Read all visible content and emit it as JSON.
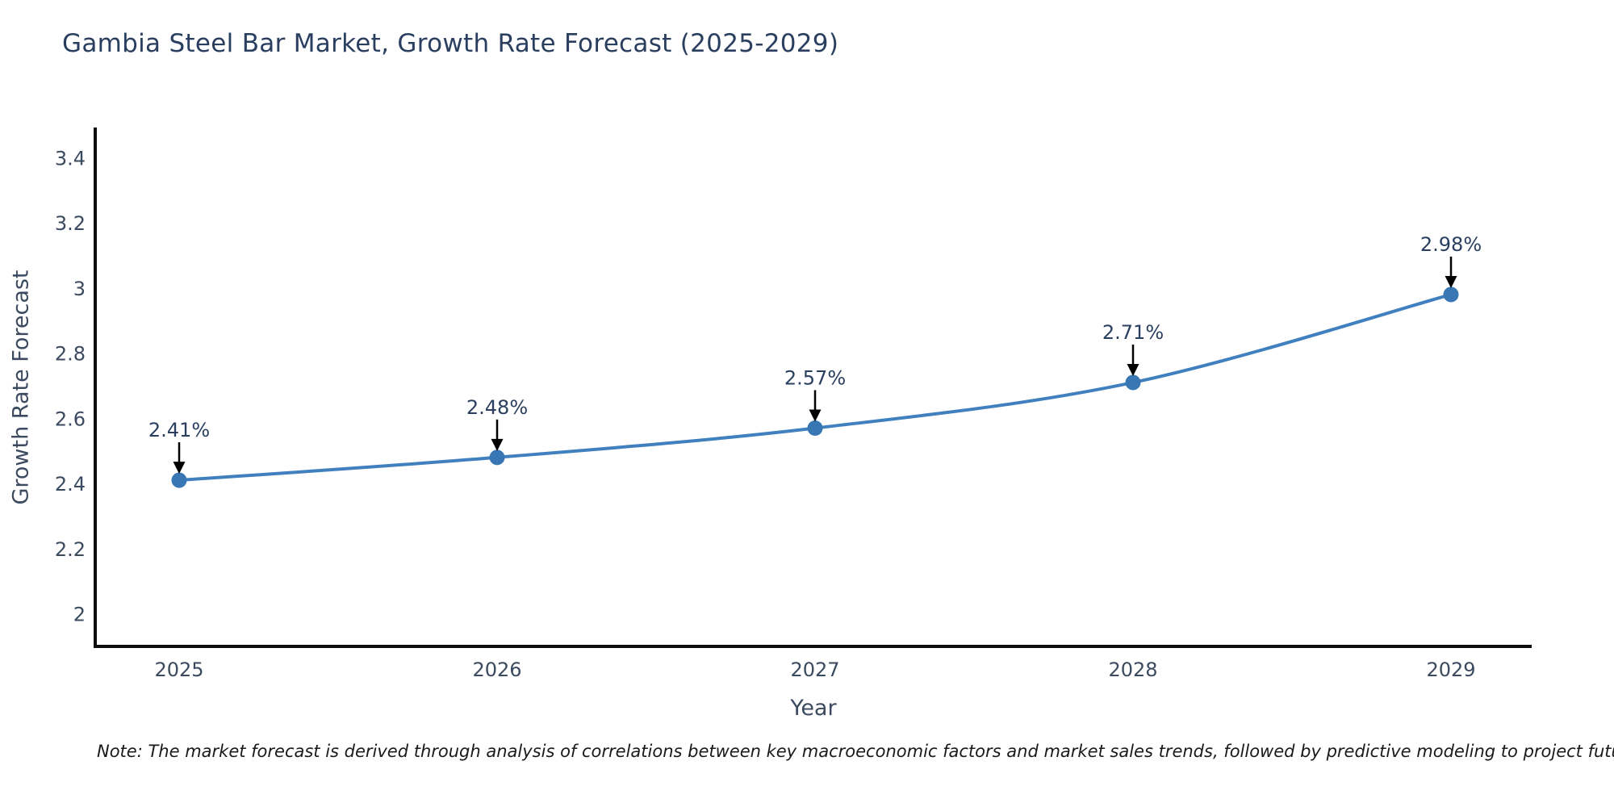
{
  "title": "Gambia Steel Bar Market, Growth Rate Forecast (2025-2029)",
  "note": "Note: The market forecast is derived through analysis of correlations between key macroeconomic factors and market sales trends, followed by predictive modeling to project future sales",
  "colors": {
    "background": "#ffffff",
    "title_text": "#2a3f5f",
    "tick_text": "#3b4a5f",
    "annotation_text": "#2a3f5f",
    "axis_line": "#0d0d0d",
    "series_line": "#4080bf",
    "marker_fill": "#3876b4",
    "arrow": "#000000",
    "note_text": "#1a1a1a"
  },
  "chart_data": {
    "type": "line",
    "title": "Gambia Steel Bar Market, Growth Rate Forecast (2025-2029)",
    "xlabel": "Year",
    "ylabel": "Growth Rate Forecast",
    "categories": [
      "2025",
      "2026",
      "2027",
      "2028",
      "2029"
    ],
    "series": [
      {
        "name": "Growth Rate Forecast",
        "values": [
          2.41,
          2.48,
          2.57,
          2.71,
          2.98
        ]
      }
    ],
    "point_labels": [
      "2.41%",
      "2.48%",
      "2.57%",
      "2.71%",
      "2.98%"
    ],
    "y_ticks": [
      2,
      2.2,
      2.4,
      2.6,
      2.8,
      3,
      3.2,
      3.4
    ],
    "ylim": [
      1.9,
      3.5
    ],
    "grid": false,
    "legend": "none",
    "smooth": true,
    "annotations": "arrow-down-to-point"
  }
}
